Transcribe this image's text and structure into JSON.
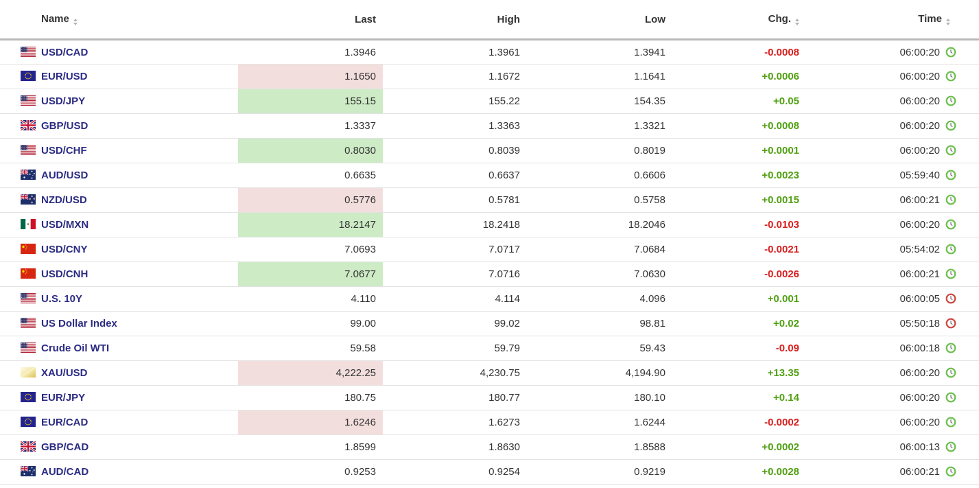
{
  "table": {
    "columns": [
      {
        "key": "name",
        "label": "Name",
        "sortable": true,
        "align": "left"
      },
      {
        "key": "last",
        "label": "Last",
        "sortable": false,
        "align": "right"
      },
      {
        "key": "high",
        "label": "High",
        "sortable": false,
        "align": "right"
      },
      {
        "key": "low",
        "label": "Low",
        "sortable": false,
        "align": "right"
      },
      {
        "key": "chg",
        "label": "Chg.",
        "sortable": true,
        "align": "right"
      },
      {
        "key": "time",
        "label": "Time",
        "sortable": true,
        "align": "right"
      }
    ],
    "rows": [
      {
        "name": "USD/CAD",
        "flag": "us",
        "last": "1.3946",
        "last_highlight": "none",
        "high": "1.3961",
        "low": "1.3941",
        "chg": "-0.0008",
        "chg_dir": "down",
        "time": "06:00:20",
        "clock": "green"
      },
      {
        "name": "EUR/USD",
        "flag": "eu",
        "last": "1.1650",
        "last_highlight": "red",
        "high": "1.1672",
        "low": "1.1641",
        "chg": "+0.0006",
        "chg_dir": "up",
        "time": "06:00:20",
        "clock": "green"
      },
      {
        "name": "USD/JPY",
        "flag": "us",
        "last": "155.15",
        "last_highlight": "green",
        "high": "155.22",
        "low": "154.35",
        "chg": "+0.05",
        "chg_dir": "up",
        "time": "06:00:20",
        "clock": "green"
      },
      {
        "name": "GBP/USD",
        "flag": "gb",
        "last": "1.3337",
        "last_highlight": "none",
        "high": "1.3363",
        "low": "1.3321",
        "chg": "+0.0008",
        "chg_dir": "up",
        "time": "06:00:20",
        "clock": "green"
      },
      {
        "name": "USD/CHF",
        "flag": "us",
        "last": "0.8030",
        "last_highlight": "green",
        "high": "0.8039",
        "low": "0.8019",
        "chg": "+0.0001",
        "chg_dir": "up",
        "time": "06:00:20",
        "clock": "green"
      },
      {
        "name": "AUD/USD",
        "flag": "au",
        "last": "0.6635",
        "last_highlight": "none",
        "high": "0.6637",
        "low": "0.6606",
        "chg": "+0.0023",
        "chg_dir": "up",
        "time": "05:59:40",
        "clock": "green"
      },
      {
        "name": "NZD/USD",
        "flag": "nz",
        "last": "0.5776",
        "last_highlight": "red",
        "high": "0.5781",
        "low": "0.5758",
        "chg": "+0.0015",
        "chg_dir": "up",
        "time": "06:00:21",
        "clock": "green"
      },
      {
        "name": "USD/MXN",
        "flag": "mx",
        "last": "18.2147",
        "last_highlight": "green",
        "high": "18.2418",
        "low": "18.2046",
        "chg": "-0.0103",
        "chg_dir": "down",
        "time": "06:00:20",
        "clock": "green"
      },
      {
        "name": "USD/CNY",
        "flag": "cn",
        "last": "7.0693",
        "last_highlight": "none",
        "high": "7.0717",
        "low": "7.0684",
        "chg": "-0.0021",
        "chg_dir": "down",
        "time": "05:54:02",
        "clock": "green"
      },
      {
        "name": "USD/CNH",
        "flag": "cn",
        "last": "7.0677",
        "last_highlight": "green",
        "high": "7.0716",
        "low": "7.0630",
        "chg": "-0.0026",
        "chg_dir": "down",
        "time": "06:00:21",
        "clock": "green"
      },
      {
        "name": "U.S. 10Y",
        "flag": "us",
        "last": "4.110",
        "last_highlight": "none",
        "high": "4.114",
        "low": "4.096",
        "chg": "+0.001",
        "chg_dir": "up",
        "time": "06:00:05",
        "clock": "red"
      },
      {
        "name": "US Dollar Index",
        "flag": "us",
        "last": "99.00",
        "last_highlight": "none",
        "high": "99.02",
        "low": "98.81",
        "chg": "+0.02",
        "chg_dir": "up",
        "time": "05:50:18",
        "clock": "red"
      },
      {
        "name": "Crude Oil WTI",
        "flag": "us",
        "last": "59.58",
        "last_highlight": "none",
        "high": "59.79",
        "low": "59.43",
        "chg": "-0.09",
        "chg_dir": "down",
        "time": "06:00:18",
        "clock": "green"
      },
      {
        "name": "XAU/USD",
        "flag": "gold",
        "last": "4,222.25",
        "last_highlight": "red",
        "high": "4,230.75",
        "low": "4,194.90",
        "chg": "+13.35",
        "chg_dir": "up",
        "time": "06:00:20",
        "clock": "green"
      },
      {
        "name": "EUR/JPY",
        "flag": "eu",
        "last": "180.75",
        "last_highlight": "none",
        "high": "180.77",
        "low": "180.10",
        "chg": "+0.14",
        "chg_dir": "up",
        "time": "06:00:20",
        "clock": "green"
      },
      {
        "name": "EUR/CAD",
        "flag": "eu",
        "last": "1.6246",
        "last_highlight": "red",
        "high": "1.6273",
        "low": "1.6244",
        "chg": "-0.0002",
        "chg_dir": "down",
        "time": "06:00:20",
        "clock": "green"
      },
      {
        "name": "GBP/CAD",
        "flag": "gb",
        "last": "1.8599",
        "last_highlight": "none",
        "high": "1.8630",
        "low": "1.8588",
        "chg": "+0.0002",
        "chg_dir": "up",
        "time": "06:00:13",
        "clock": "green"
      },
      {
        "name": "AUD/CAD",
        "flag": "au",
        "last": "0.9253",
        "last_highlight": "none",
        "high": "0.9254",
        "low": "0.9219",
        "chg": "+0.0028",
        "chg_dir": "up",
        "time": "06:00:21",
        "clock": "green"
      }
    ]
  },
  "icons": {
    "sort_icon": "sort-arrows-icon",
    "clock_icon": "clock-icon",
    "flags": [
      "us-flag-icon",
      "eu-flag-icon",
      "gb-flag-icon",
      "au-flag-icon",
      "nz-flag-icon",
      "mx-flag-icon",
      "cn-flag-icon",
      "gold-bar-icon"
    ]
  },
  "colors": {
    "pair_link": "#2b2b84",
    "value_text": "#333333",
    "chg_up": "#51a012",
    "chg_down": "#d91e1e",
    "highlight_up": "#cdebc5",
    "highlight_down": "#f3dede",
    "clock_green": "#6bbf4b",
    "clock_red": "#cd4640",
    "header_border": "#b9b9b9",
    "row_border": "#e3e3e3"
  }
}
